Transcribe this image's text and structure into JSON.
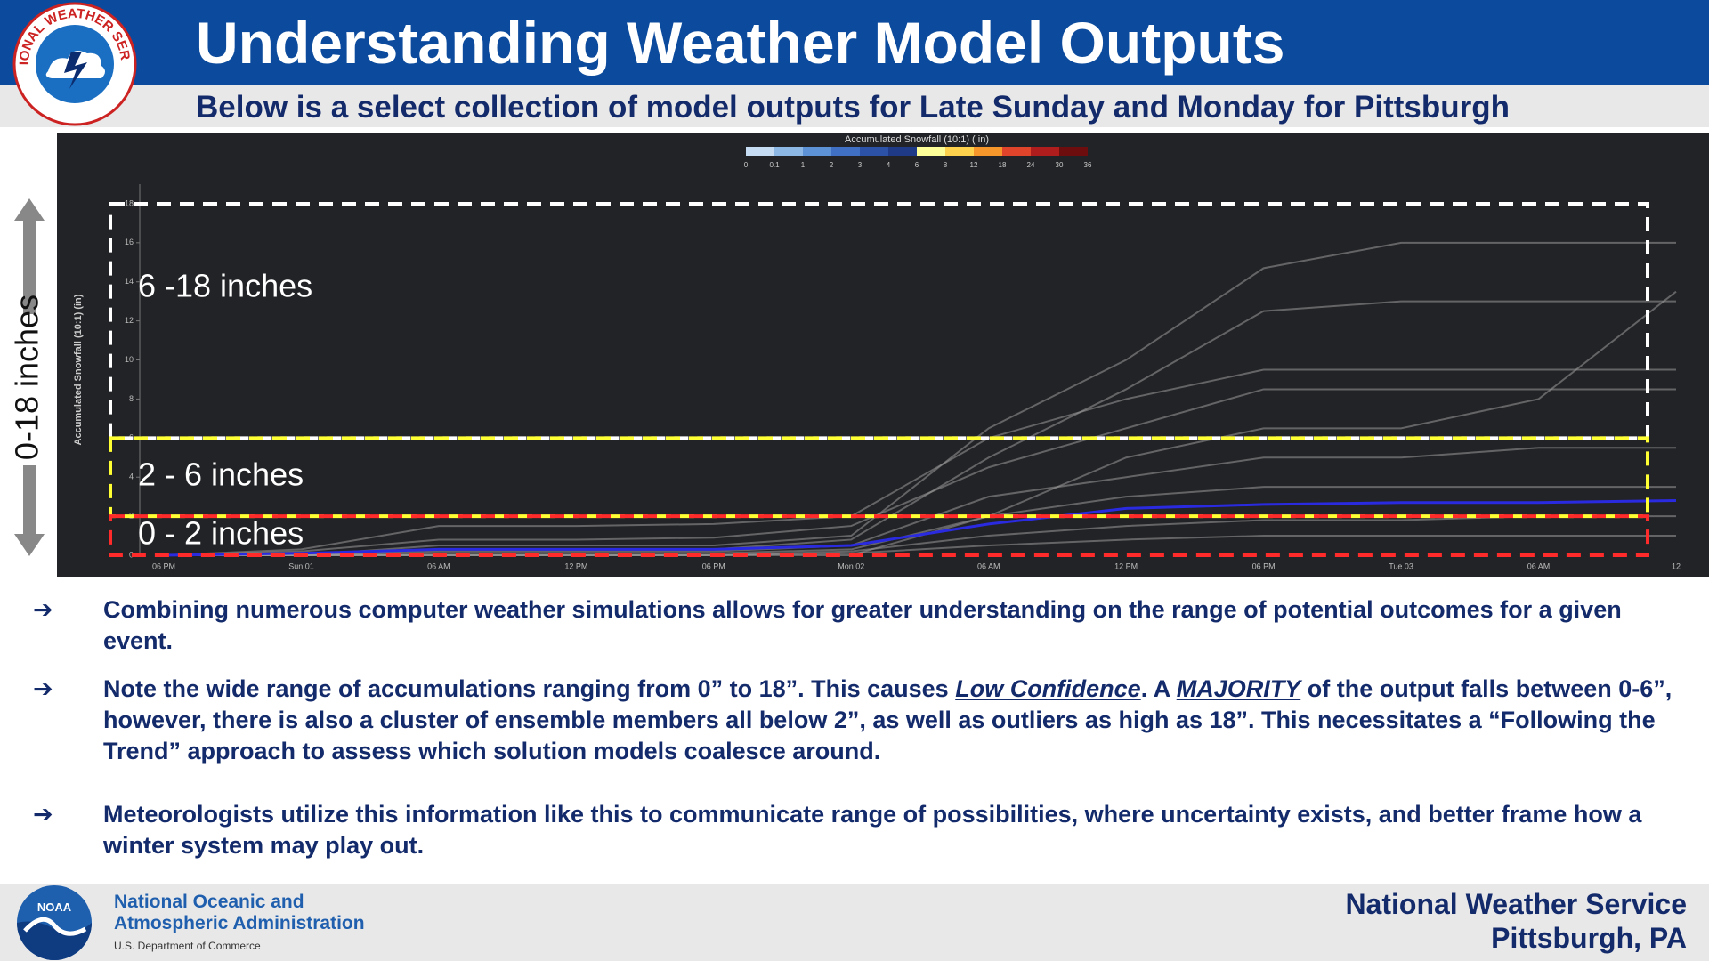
{
  "header": {
    "logo_text": "NATIONAL WEATHER SERVICE",
    "title": "Understanding Weather Model Outputs",
    "subtitle": "Below is a select collection of model outputs for Late Sunday and Monday for Pittsburgh"
  },
  "side_label": "0-18 inches",
  "chart_data": {
    "type": "line",
    "y_label": "Accumulated Snowfall (10:1) (in)",
    "x": [
      "06 PM",
      "Sun 01",
      "06 AM",
      "12 PM",
      "06 PM",
      "Mon 02",
      "06 AM",
      "12 PM",
      "06 PM",
      "Tue 03",
      "06 AM",
      "12"
    ],
    "ylim": [
      0,
      19
    ],
    "yticks": [
      0,
      2,
      4,
      6,
      8,
      10,
      12,
      14,
      16,
      18
    ],
    "series": [
      {
        "color": "#9a9a9a",
        "values": [
          0,
          0,
          0.5,
          0.5,
          0.5,
          1,
          6.5,
          10,
          14.7,
          16,
          16,
          16
        ]
      },
      {
        "color": "#9a9a9a",
        "values": [
          0,
          0,
          0.3,
          0.3,
          0.3,
          0.8,
          5,
          8.5,
          12.5,
          13,
          13,
          13
        ]
      },
      {
        "color": "#9a9a9a",
        "values": [
          0,
          0,
          0,
          0,
          0,
          0,
          2,
          5,
          6.5,
          6.5,
          8,
          13.5
        ]
      },
      {
        "color": "#9a9a9a",
        "values": [
          0,
          0.3,
          1.5,
          1.5,
          1.6,
          2,
          6,
          8,
          9.5,
          9.5,
          9.5,
          9.5
        ]
      },
      {
        "color": "#9a9a9a",
        "values": [
          0,
          0.2,
          0.8,
          0.8,
          0.9,
          1.5,
          4.5,
          6.5,
          8.5,
          8.5,
          8.5,
          8.5
        ]
      },
      {
        "color": "#9a9a9a",
        "values": [
          0,
          0,
          0.2,
          0.2,
          0.2,
          0.5,
          3,
          4,
          5,
          5,
          5.5,
          5.5
        ]
      },
      {
        "color": "#9a9a9a",
        "values": [
          0,
          0,
          0.1,
          0.1,
          0.1,
          0.3,
          2,
          3,
          3.5,
          3.5,
          3.5,
          3.5
        ]
      },
      {
        "color": "#9a9a9a",
        "values": [
          0,
          0,
          0,
          0,
          0,
          0.2,
          1,
          1.5,
          1.8,
          1.8,
          2,
          2
        ]
      },
      {
        "color": "#9a9a9a",
        "values": [
          0,
          0,
          0,
          0,
          0,
          0.1,
          0.5,
          0.8,
          1,
          1,
          1,
          1
        ]
      },
      {
        "color": "#2a2ae0",
        "values": [
          0,
          0.1,
          0.3,
          0.3,
          0.3,
          0.5,
          1.6,
          2.4,
          2.6,
          2.7,
          2.7,
          2.8
        ]
      }
    ],
    "colorbar": {
      "title": "Accumulated Snowfall (10:1) ( in)",
      "labels": [
        0,
        0.1,
        1,
        2,
        3,
        4,
        6,
        8,
        12,
        18,
        24,
        30,
        36
      ],
      "colors": [
        "#c5dcf2",
        "#8db8e6",
        "#5e92d6",
        "#3f70c4",
        "#2c52a8",
        "#1f3a86",
        "#ffff99",
        "#ffd24d",
        "#f5972a",
        "#e0452b",
        "#b01d1d",
        "#6e0d0d"
      ]
    },
    "bands": [
      {
        "label": "6 -18 inches",
        "low": 6,
        "high": 18,
        "color": "#ffffff"
      },
      {
        "label": "2 - 6 inches",
        "low": 2,
        "high": 6,
        "color": "#ffff33"
      },
      {
        "label": "0 - 2 inches",
        "low": 0,
        "high": 2,
        "color": "#ff2a2a"
      }
    ]
  },
  "bullets": [
    {
      "parts": [
        "Combining numerous computer weather simulations allows for greater understanding on the range of potential outcomes for a given event."
      ]
    },
    {
      "parts": [
        "Note the wide range of accumulations ranging from 0” to 18”. This causes ",
        "Low Confidence",
        ". A ",
        "MAJORITY",
        " of the output falls between 0-6”, however, there is also a cluster of ensemble members all below 2”, as well as outliers as high as 18”. This necessitates a “Following the Trend” approach to assess which solution models coalesce around."
      ]
    },
    {
      "parts": [
        "Meteorologists utilize this information like this to communicate range of possibilities, where uncertainty exists, and better frame how a winter system may play out."
      ]
    }
  ],
  "footer": {
    "noaa_badge": "NOAA",
    "noaa_line1": "National Oceanic and",
    "noaa_line2": "Atmospheric Administration",
    "noaa_line3": "U.S. Department of Commerce",
    "office_line1": "National Weather Service",
    "office_line2": "Pittsburgh, PA"
  }
}
